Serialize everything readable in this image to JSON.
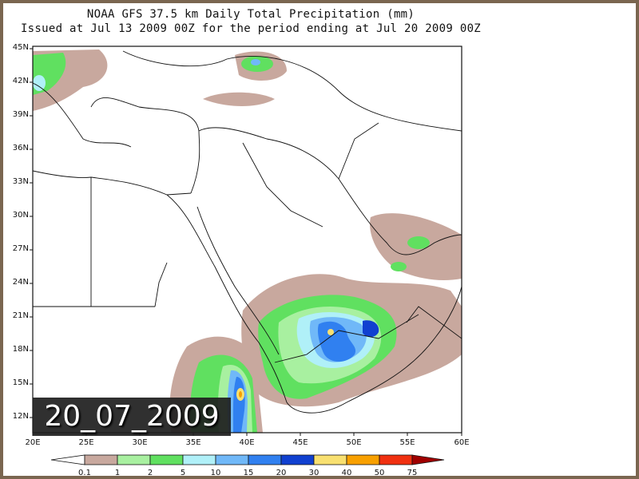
{
  "title": {
    "line1": "NOAA GFS 37.5 km Daily Total Precipitation (mm)",
    "line2": "Issued at Jul 13 2009 00Z for the period ending at Jul 20 2009 00Z"
  },
  "date_stamp": "20_07_2009",
  "axes": {
    "lat_labels": [
      "45N",
      "42N",
      "39N",
      "36N",
      "33N",
      "30N",
      "27N",
      "24N",
      "21N",
      "18N",
      "15N",
      "12N"
    ],
    "lon_labels": [
      "20E",
      "25E",
      "30E",
      "35E",
      "40E",
      "45E",
      "50E",
      "55E",
      "60E"
    ],
    "lat_range": [
      10.5,
      45
    ],
    "lon_range": [
      20,
      60
    ]
  },
  "colorbar": {
    "labels": [
      "0.1",
      "1",
      "2",
      "5",
      "10",
      "15",
      "20",
      "30",
      "40",
      "50",
      "75"
    ],
    "colors": [
      "#ffffff",
      "#c8a89e",
      "#a8f0a0",
      "#60e060",
      "#b0f0f8",
      "#70b8f8",
      "#3080f0",
      "#1040d0",
      "#f8e070",
      "#f8a000",
      "#f03010",
      "#a00000"
    ]
  }
}
